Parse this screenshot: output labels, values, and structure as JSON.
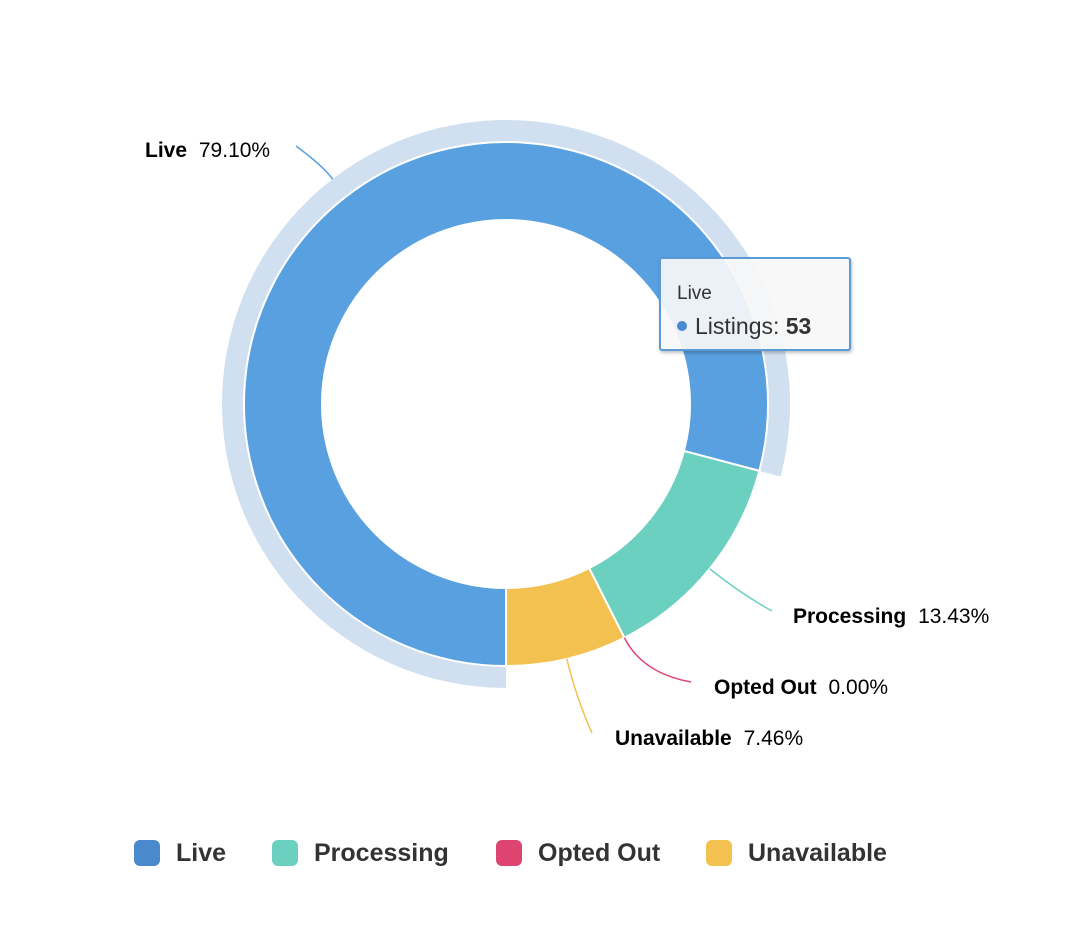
{
  "chart_data": {
    "type": "pie",
    "variant": "donut",
    "categories": [
      "Live",
      "Processing",
      "Opted Out",
      "Unavailable"
    ],
    "percent_labels": [
      "79.10%",
      "13.43%",
      "0.00%",
      "7.46%"
    ],
    "values": [
      79.1,
      13.43,
      0.0,
      7.46
    ],
    "colors": [
      "#58a0e0",
      "#6bd0bf",
      "#e04870",
      "#f2c14f"
    ],
    "legend_colors": [
      "#4a89cc",
      "#6bd0bf",
      "#de4470",
      "#f2c14f"
    ],
    "halo_color": "#d0e0f0",
    "hovered": "Live",
    "legend_position": "bottom"
  },
  "tooltip": {
    "title": "Live",
    "series_label": "Listings: ",
    "value": "53",
    "dot_color": "#4a8ad0"
  },
  "legend": {
    "items": [
      {
        "label": "Live",
        "color": "#4a89cc"
      },
      {
        "label": "Processing",
        "color": "#6bd0bf"
      },
      {
        "label": "Opted Out",
        "color": "#de4470"
      },
      {
        "label": "Unavailable",
        "color": "#f2c14f"
      }
    ]
  }
}
